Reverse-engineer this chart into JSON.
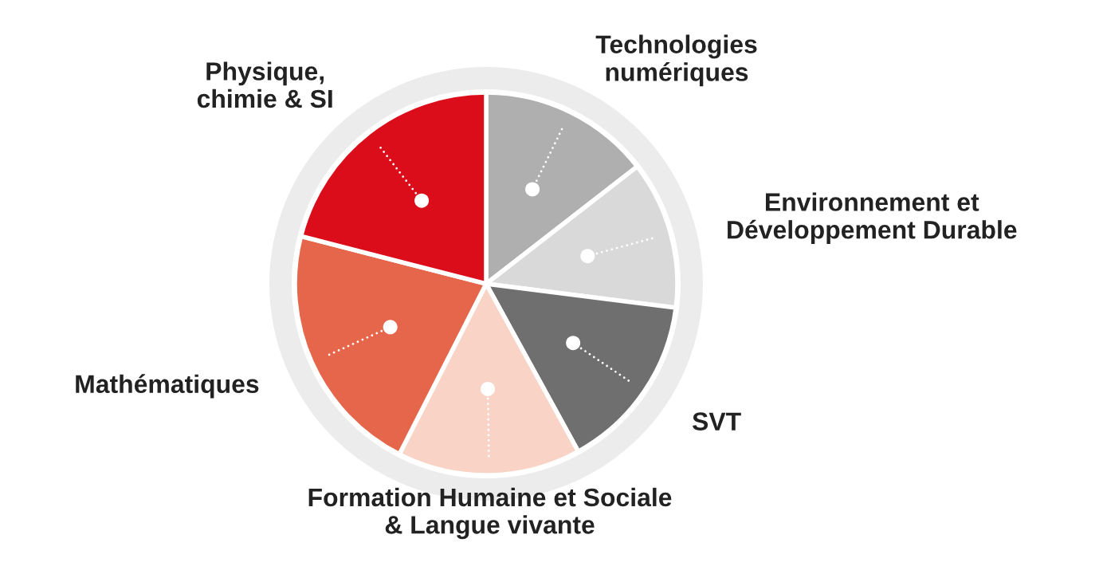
{
  "chart_data": {
    "type": "pie",
    "categories": [
      "Technologies\nnumériques",
      "Environnement et\nDéveloppement Durable",
      "SVT",
      "Formation Humaine et Sociale\n& Langue vivante",
      "Mathématiques",
      "Physique,\nchimie & SI"
    ],
    "values": [
      14.5,
      12.5,
      15,
      15.5,
      21.5,
      21
    ],
    "colors": [
      "#b0afaf",
      "#d9d9d9",
      "#706f6f",
      "#f9d4c6",
      "#e5664a",
      "#dc0d1a"
    ],
    "legend": false
  }
}
